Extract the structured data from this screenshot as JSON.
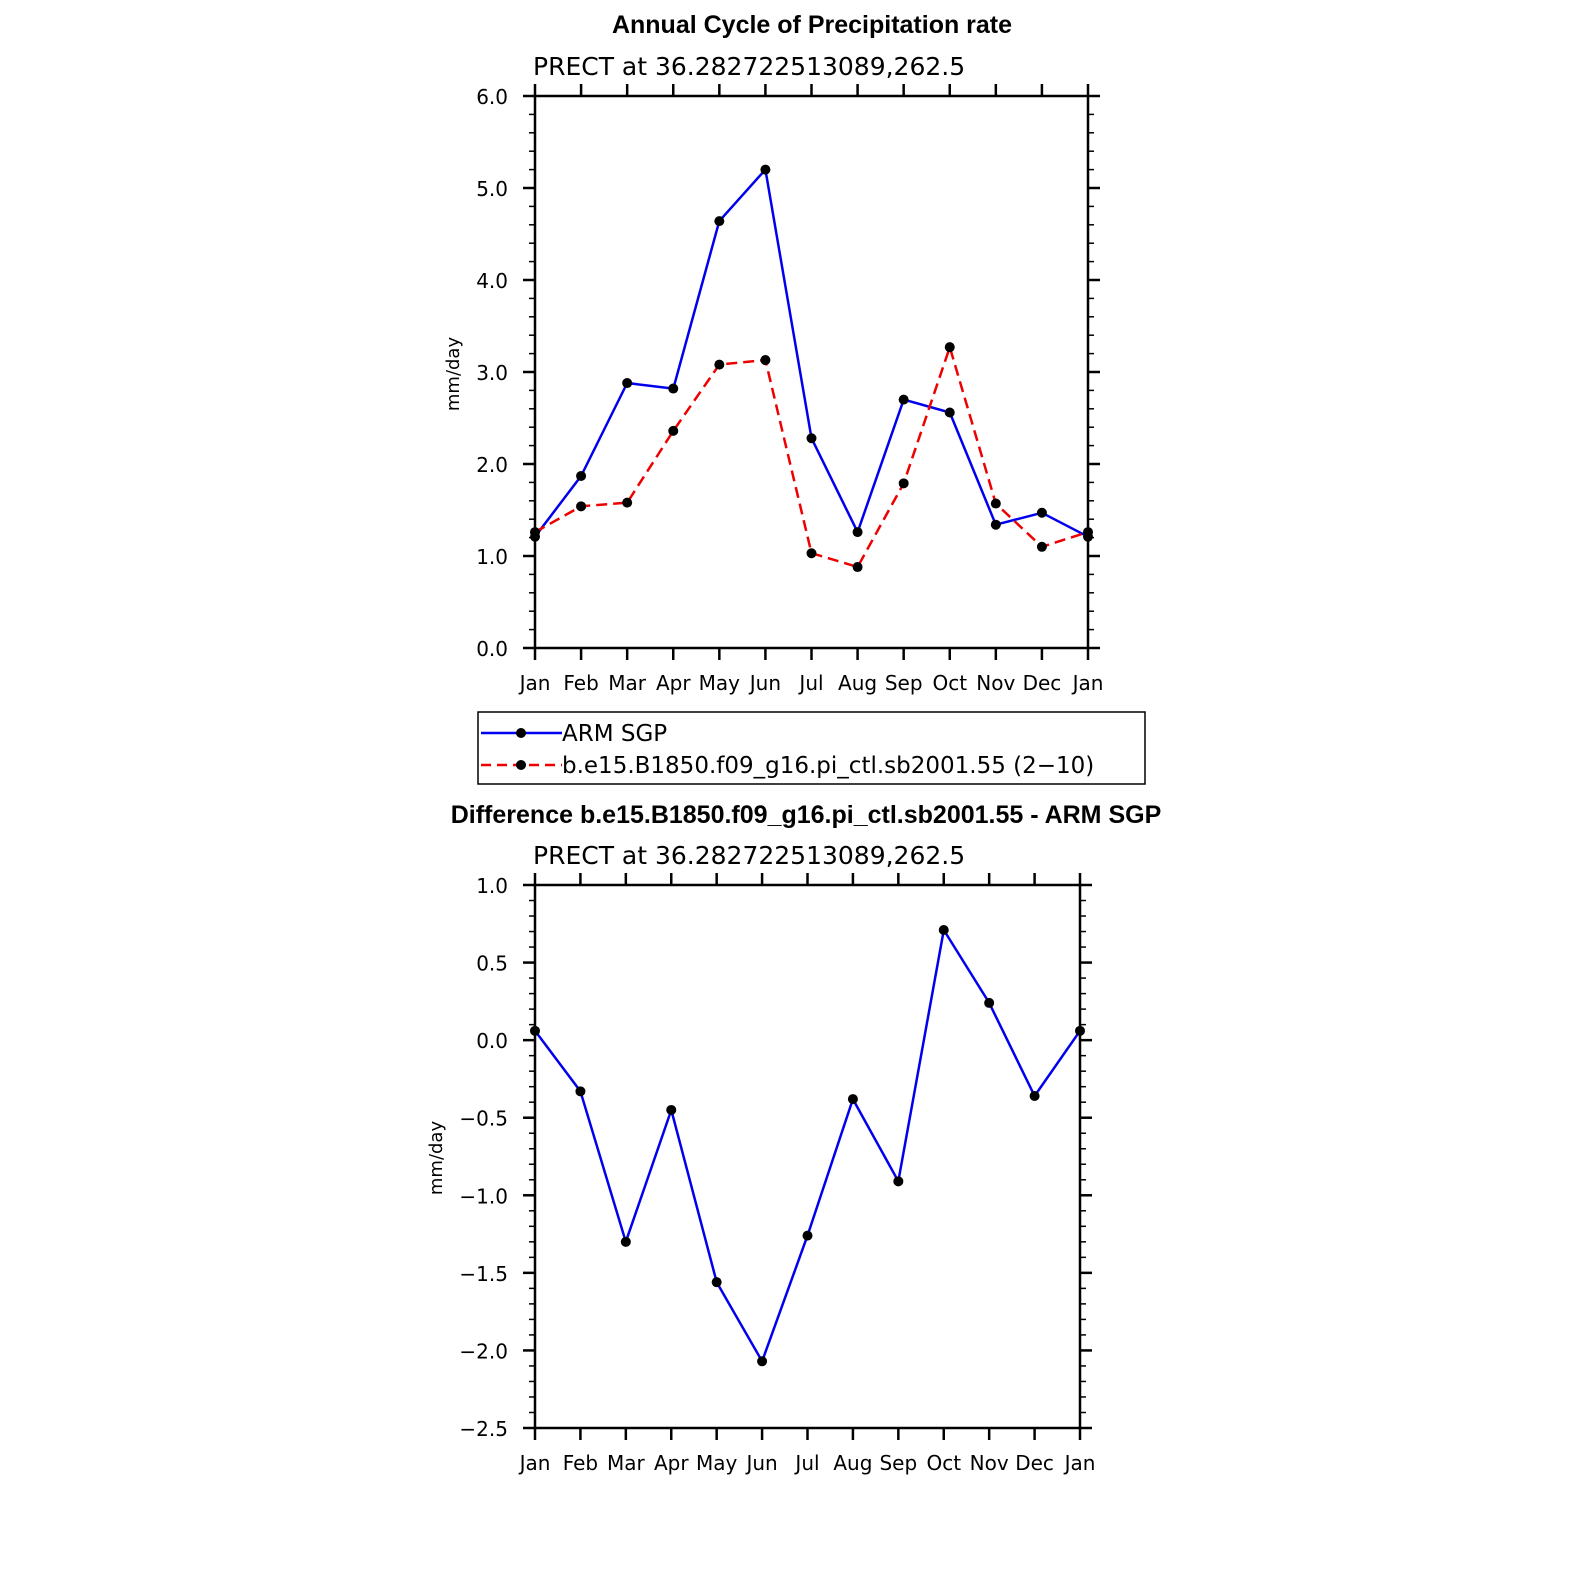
{
  "chart_data": [
    {
      "type": "line",
      "title": "Annual Cycle of Precipitation rate",
      "subtitle": "PRECT at 36.282722513089,262.5",
      "ylabel": "mm/day",
      "xlabel": "",
      "ylim": [
        0.0,
        6.0
      ],
      "yticks": [
        "0.0",
        "1.0",
        "2.0",
        "3.0",
        "4.0",
        "5.0",
        "6.0"
      ],
      "categories": [
        "Jan",
        "Feb",
        "Mar",
        "Apr",
        "May",
        "Jun",
        "Jul",
        "Aug",
        "Sep",
        "Oct",
        "Nov",
        "Dec",
        "Jan"
      ],
      "series": [
        {
          "name": "ARM SGP",
          "color": "#0000ee",
          "dash": "solid",
          "values": [
            1.21,
            1.87,
            2.88,
            2.82,
            4.64,
            5.2,
            2.28,
            1.26,
            2.7,
            2.56,
            1.34,
            1.47,
            1.21
          ]
        },
        {
          "name": "b.e15.B1850.f09_g16.pi_ctl.sb2001.55 (2−10)",
          "color": "#ee0000",
          "dash": "dashed",
          "values": [
            1.26,
            1.54,
            1.58,
            2.36,
            3.08,
            3.13,
            1.03,
            0.88,
            1.79,
            3.27,
            1.57,
            1.1,
            1.26
          ]
        }
      ],
      "legend": [
        "ARM SGP",
        "b.e15.B1850.f09_g16.pi_ctl.sb2001.55 (2−10)"
      ]
    },
    {
      "type": "line",
      "title": "Difference b.e15.B1850.f09_g16.pi_ctl.sb2001.55 - ARM SGP",
      "subtitle": "PRECT at 36.282722513089,262.5",
      "ylabel": "mm/day",
      "xlabel": "",
      "ylim": [
        -2.5,
        1.0
      ],
      "yticks": [
        "−2.5",
        "−2.0",
        "−1.5",
        "−1.0",
        "−0.5",
        "0.0",
        "0.5",
        "1.0"
      ],
      "categories": [
        "Jan",
        "Feb",
        "Mar",
        "Apr",
        "May",
        "Jun",
        "Jul",
        "Aug",
        "Sep",
        "Oct",
        "Nov",
        "Dec",
        "Jan"
      ],
      "series": [
        {
          "name": "Difference",
          "color": "#0000ee",
          "dash": "solid",
          "values": [
            0.06,
            -0.33,
            -1.3,
            -0.45,
            -1.56,
            -2.07,
            -1.26,
            -0.38,
            -0.91,
            0.71,
            0.24,
            -0.36,
            0.06
          ]
        }
      ]
    }
  ]
}
